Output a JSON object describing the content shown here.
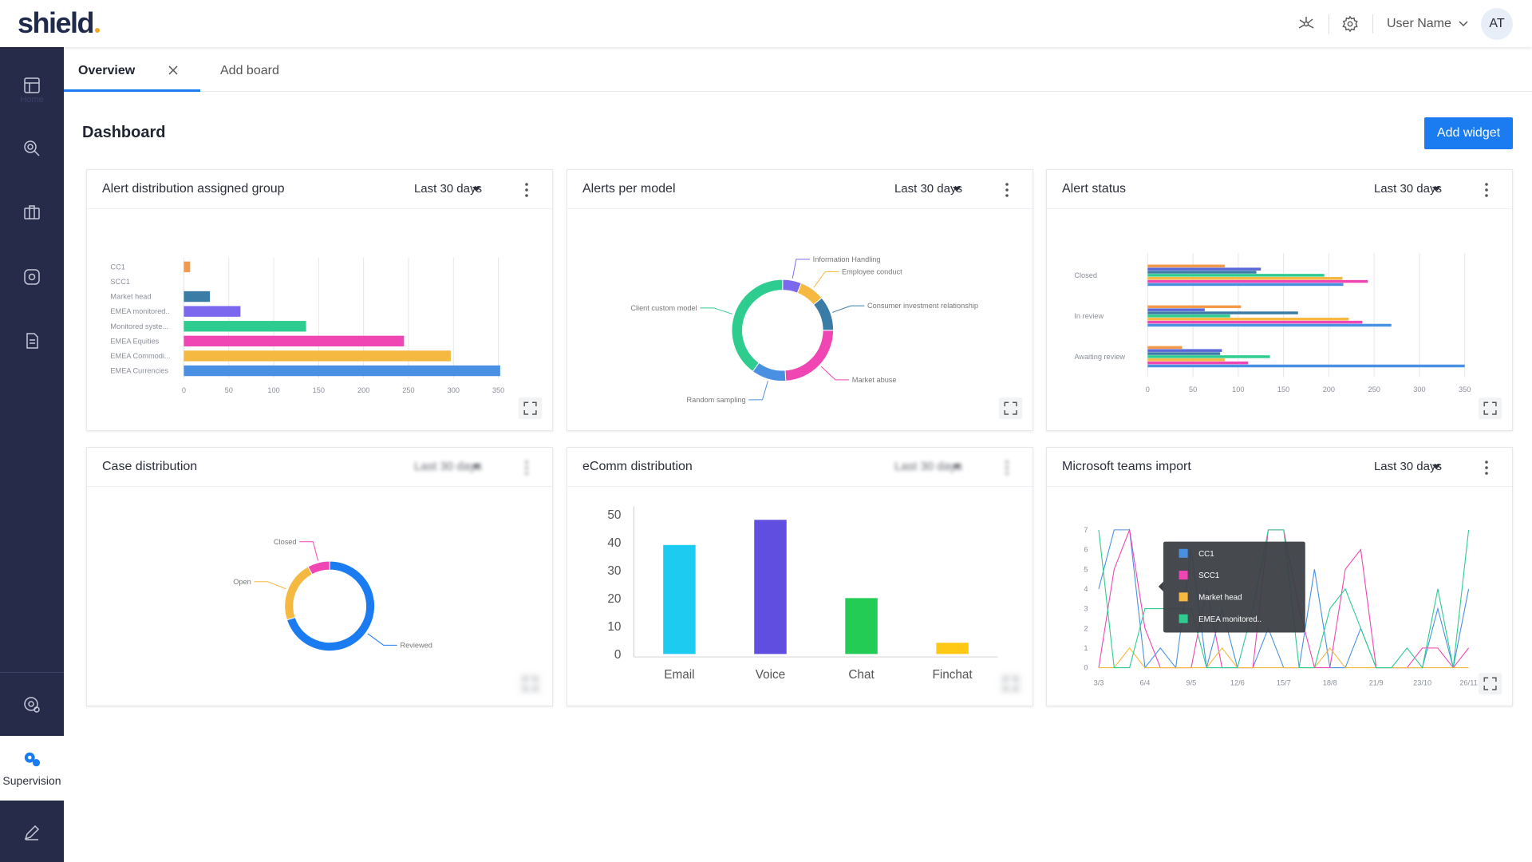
{
  "header": {
    "logo": "shield",
    "user_name": "User Name",
    "avatar": "AT"
  },
  "sidebar": {
    "items": [
      "Home"
    ],
    "active": "Supervision"
  },
  "tabs": [
    "Overview",
    "Add board"
  ],
  "page_title": "Dashboard",
  "add_widget": "Add widget",
  "widgets": [
    {
      "title": "Alert distribution assigned group",
      "range": "Last 30 days",
      "chart": {
        "type": "bar",
        "orientation": "horizontal",
        "categories": [
          "CC1",
          "SCC1",
          "Market head",
          "EMEA monitored..",
          "Monitored syste...",
          "EMEA Equities",
          "EMEA Commodi...",
          "EMEA Currencies"
        ],
        "values": [
          7,
          0,
          29,
          63,
          136,
          245,
          297,
          352
        ],
        "colors": [
          "#f2994a",
          "#3a7ca5",
          "#3a7ca5",
          "#7b68ee",
          "#2ecc8f",
          "#f046b4",
          "#f5b942",
          "#4a90e2"
        ],
        "xlim": [
          0,
          355
        ],
        "xticks": [
          0,
          50,
          100,
          150,
          200,
          250,
          300,
          350
        ],
        "grid": true
      }
    },
    {
      "title": "Alerts per model",
      "range": "Last 30 days",
      "chart": {
        "type": "pie",
        "donut": true,
        "categories": [
          "Information Handling",
          "Employee conduct",
          "Consumer investment relationship",
          "Market abuse",
          "Random sampling",
          "Client custom model"
        ],
        "values": [
          6,
          8,
          11,
          24,
          11,
          40
        ],
        "colors": [
          "#7b68ee",
          "#f5b942",
          "#3a7ca5",
          "#f046b4",
          "#4a90e2",
          "#2ecc8f"
        ]
      }
    },
    {
      "title": "Alert status",
      "range": "Last 30 days",
      "chart": {
        "type": "bar",
        "orientation": "horizontal",
        "categories": [
          "Closed",
          "In review",
          "Awaiting review"
        ],
        "series": [
          {
            "color": "#f2994a",
            "values": [
              85,
              103,
              38
            ]
          },
          {
            "color": "#5a67d8",
            "values": [
              125,
              63,
              82
            ]
          },
          {
            "color": "#3a7ca5",
            "values": [
              120,
              166,
              80
            ]
          },
          {
            "color": "#2ecc8f",
            "values": [
              195,
              91,
              135
            ]
          },
          {
            "color": "#f5b942",
            "values": [
              215,
              222,
              85
            ]
          },
          {
            "color": "#f046b4",
            "values": [
              243,
              237,
              111
            ]
          },
          {
            "color": "#4a90e2",
            "values": [
              216,
              269,
              350
            ]
          }
        ],
        "xlim": [
          0,
          350
        ],
        "xticks": [
          0,
          50,
          100,
          150,
          200,
          250,
          300,
          350
        ],
        "grid": true
      }
    },
    {
      "title": "Case distribution",
      "range": "Last 30 days",
      "range_blurred": true,
      "chart": {
        "type": "pie",
        "donut": true,
        "categories": [
          "Reviewed",
          "Open",
          "Closed"
        ],
        "values": [
          70,
          22,
          8
        ],
        "colors": [
          "#1a7cf0",
          "#f5b942",
          "#f046b4"
        ]
      }
    },
    {
      "title": "eComm distribution",
      "range": "Last 30 days",
      "range_blurred": true,
      "chart": {
        "type": "bar",
        "categories": [
          "Email",
          "Voice",
          "Chat",
          "Finchat"
        ],
        "values": [
          39,
          48,
          20,
          4
        ],
        "colors": [
          "#1ecbf0",
          "#5f4ee0",
          "#22cc55",
          "#ffc814"
        ],
        "ylim": [
          0,
          50
        ],
        "yticks": [
          0,
          10,
          20,
          30,
          40,
          50
        ],
        "grid": false
      }
    },
    {
      "title": "Microsoft teams import",
      "range": "Last 30 days",
      "chart": {
        "type": "line",
        "categories": [
          "3/3",
          null,
          null,
          "6/4",
          null,
          null,
          "9/5",
          null,
          null,
          "12/6",
          null,
          null,
          "15/7",
          null,
          null,
          "18/8",
          null,
          null,
          "21/9",
          null,
          null,
          "23/10",
          null,
          null,
          "26/11"
        ],
        "series": [
          {
            "name": "CC1",
            "color": "#4a90e2",
            "values": [
              4,
              7,
              7,
              0,
              1,
              0,
              6,
              0,
              3,
              0,
              0,
              2,
              0,
              0,
              5,
              0,
              0,
              2,
              0,
              0,
              0,
              0,
              3,
              0,
              4
            ]
          },
          {
            "name": "SCC1",
            "color": "#f046b4",
            "values": [
              0,
              5,
              7,
              2,
              0,
              0,
              0,
              4,
              0,
              0,
              0,
              7,
              7,
              3,
              0,
              0,
              5,
              6,
              0,
              0,
              0,
              1,
              1,
              0,
              1
            ]
          },
          {
            "name": "Market head",
            "color": "#f5b942",
            "values": [
              0,
              0,
              1,
              0,
              0,
              0,
              0,
              0,
              1,
              0,
              0,
              0,
              0,
              0,
              0,
              1,
              0,
              0,
              0,
              0,
              0,
              0,
              0,
              0,
              0
            ]
          },
          {
            "name": "EMEA monitored..",
            "color": "#2ecc8f",
            "values": [
              7,
              0,
              0,
              3,
              3,
              3,
              3,
              0,
              0,
              0,
              3,
              7,
              7,
              0,
              0,
              3,
              4,
              2,
              0,
              0,
              1,
              0,
              4,
              0,
              7
            ]
          }
        ],
        "ylim": [
          0,
          7
        ],
        "yticks": [
          0,
          1,
          2,
          3,
          4,
          5,
          6,
          7
        ],
        "tooltip": true
      }
    }
  ]
}
